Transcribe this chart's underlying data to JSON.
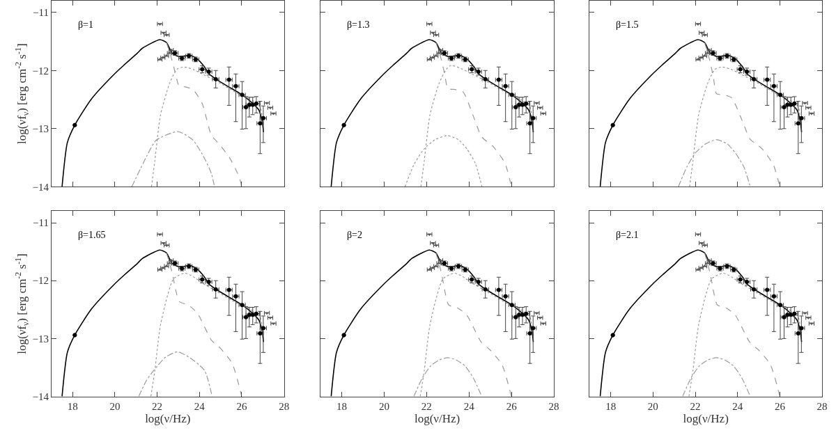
{
  "chart_data": [
    {
      "type": "line",
      "annotations": [
        "β=1"
      ],
      "ylabel": "log(νf$_{ν}$) [erg cm$^{-2}$ s$^{-1}$]",
      "xlim": [
        17,
        28
      ],
      "ylim": [
        -14,
        -10.8
      ],
      "xticks": [
        18,
        20,
        22,
        24,
        26,
        28
      ],
      "yticks": [
        -14,
        -13,
        -12,
        -11
      ],
      "tick_labels": "y",
      "series": [
        {
          "type": "line",
          "color": "#000000",
          "line_style": "solid",
          "x": [
            17.5,
            17.75,
            18.1,
            18.89,
            19.98,
            20.42,
            21.07,
            21.29,
            22.13,
            22.44,
            22.7,
            23.04,
            23.57,
            23.9,
            24.24,
            24.46,
            24.79,
            25.33,
            26.02,
            26.53,
            26.81,
            26.97,
            27.03
          ],
          "values": [
            -14,
            -13.24,
            -12.94,
            -12.49,
            -12.06,
            -11.91,
            -11.7,
            -11.62,
            -11.47,
            -11.52,
            -11.7,
            -11.76,
            -11.74,
            -11.8,
            -11.94,
            -12.06,
            -12.15,
            -12.27,
            -12.42,
            -12.57,
            -12.68,
            -12.88,
            -13.06
          ]
        },
        {
          "type": "line",
          "color": "#999999",
          "line_style": "dashed",
          "x": [
            22.44,
            22.7,
            22.87,
            23.04,
            23.31,
            23.7,
            24.13,
            24.57,
            24.9,
            25.44,
            25.88,
            26.0
          ],
          "values": [
            -11.52,
            -11.82,
            -12.06,
            -12.27,
            -12.28,
            -12.33,
            -12.57,
            -13.12,
            -13.25,
            -13.51,
            -13.83,
            -14
          ]
        },
        {
          "type": "line",
          "color": "#999999",
          "line_style": "dotted",
          "x": [
            21.73,
            21.89,
            22.16,
            22.6,
            22.93,
            23.27,
            23.7,
            24.13,
            24.79,
            25.88,
            26.53,
            26.87,
            27.0
          ],
          "values": [
            -14,
            -13.55,
            -12.76,
            -12.21,
            -11.98,
            -11.94,
            -11.98,
            -12.06,
            -12.18,
            -12.41,
            -12.52,
            -12.63,
            -12.9
          ]
        },
        {
          "type": "line",
          "color": "#999999",
          "line_style": "dashdot",
          "x": [
            20.8,
            21.51,
            21.95,
            22.98,
            23.7,
            24.24,
            24.57,
            24.71
          ],
          "values": [
            -14,
            -13.47,
            -13.2,
            -13.05,
            -13.2,
            -13.51,
            -13.78,
            -14
          ]
        },
        {
          "type": "scatter",
          "color": "#000000",
          "marker": "circle",
          "x": [
            18.1,
            22.84,
            23.17,
            23.5,
            23.82,
            24.13,
            24.44,
            24.77,
            25.4,
            25.72,
            26.02,
            26.2,
            26.36,
            26.52,
            26.69,
            26.87,
            27.02
          ],
          "values": [
            -12.94,
            -11.7,
            -11.79,
            -11.75,
            -11.81,
            -11.98,
            -12.02,
            -12.15,
            -12.16,
            -12.27,
            -12.42,
            -12.63,
            -12.59,
            -12.59,
            -12.57,
            -12.91,
            -12.82
          ],
          "errors": [
            null,
            [
              -11.74,
              -11.66
            ],
            [
              -11.83,
              -11.75
            ],
            [
              -11.79,
              -11.71
            ],
            [
              -11.85,
              -11.77
            ],
            [
              -12.04,
              -11.92
            ],
            [
              -12.08,
              -11.96
            ],
            [
              -12.3,
              -12.0
            ],
            [
              -12.6,
              -11.94
            ],
            [
              -12.88,
              -12.06
            ],
            [
              -13.01,
              -12.19
            ],
            [
              -13.0,
              -12.45
            ],
            [
              -12.8,
              -12.46
            ],
            [
              -12.76,
              -12.46
            ],
            [
              -12.73,
              -12.45
            ],
            [
              -13.43,
              -12.53
            ],
            [
              -13.24,
              -12.61
            ]
          ],
          "xerrors": [
            null,
            0.15,
            0.15,
            0.15,
            0.15,
            0.15,
            0.15,
            0.15,
            0.15,
            0.15,
            0.15,
            0.15,
            0.15,
            0.15,
            0.15,
            0.15,
            0.15
          ]
        },
        {
          "type": "scatter",
          "color": "#555555",
          "marker": "triangle-down",
          "x": [
            22.13,
            22.3,
            22.45,
            27.19,
            27.35,
            27.5
          ],
          "values": [
            -11.2,
            -11.35,
            -11.39,
            -12.56,
            -12.64,
            -12.74
          ],
          "xerrors": [
            0.12,
            0.12,
            0.12,
            0.12,
            0.12,
            0.12
          ]
        },
        {
          "type": "scatter",
          "color": "#555555",
          "marker": "triangle",
          "x": [
            22.13,
            22.27,
            22.44,
            22.58,
            22.66
          ],
          "values": [
            -11.81,
            -11.78,
            -11.75,
            -11.7,
            -11.65
          ],
          "xerrors": [
            0.1,
            0.1,
            0.1,
            0.1,
            0.1
          ]
        }
      ]
    },
    {
      "type": "line",
      "annotations": [
        "β=1.3"
      ],
      "xlim": [
        17,
        28
      ],
      "ylim": [
        -14,
        -10.8
      ],
      "xticks": [
        18,
        20,
        22,
        24,
        26,
        28
      ],
      "yticks": [
        -14,
        -13,
        -12,
        -11
      ],
      "tick_labels": false,
      "series": [
        {
          "type": "line",
          "color": "#000000",
          "line_style": "solid",
          "x": [
            17.5,
            17.75,
            18.1,
            18.89,
            19.98,
            20.42,
            21.07,
            21.29,
            22.13,
            22.44,
            22.7,
            23.04,
            23.57,
            23.9,
            24.24,
            24.46,
            24.79,
            25.33,
            26.02,
            26.53,
            26.81,
            26.97,
            27.03
          ],
          "values": [
            -14,
            -13.24,
            -12.94,
            -12.49,
            -12.06,
            -11.91,
            -11.7,
            -11.62,
            -11.47,
            -11.52,
            -11.7,
            -11.76,
            -11.74,
            -11.8,
            -11.94,
            -12.06,
            -12.15,
            -12.27,
            -12.42,
            -12.57,
            -12.68,
            -12.88,
            -13.06
          ]
        },
        {
          "type": "line",
          "color": "#999999",
          "line_style": "dashed",
          "x": [
            22.44,
            22.7,
            22.87,
            23.0,
            23.39,
            23.72,
            24.26,
            24.59,
            25.14,
            25.69,
            26.0
          ],
          "values": [
            -11.52,
            -11.82,
            -12.1,
            -12.31,
            -12.33,
            -12.37,
            -12.84,
            -13.14,
            -13.31,
            -13.59,
            -14
          ]
        },
        {
          "type": "line",
          "color": "#999999",
          "line_style": "dotted",
          "x": [
            21.73,
            21.89,
            22.16,
            22.6,
            22.93,
            23.15,
            23.7,
            24.13,
            24.79,
            25.88,
            26.53,
            26.87,
            27.0
          ],
          "values": [
            -14,
            -13.55,
            -12.76,
            -12.21,
            -11.98,
            -11.91,
            -11.98,
            -12.06,
            -12.18,
            -12.41,
            -12.52,
            -12.63,
            -12.9
          ]
        },
        {
          "type": "line",
          "color": "#999999",
          "line_style": "dotted",
          "x": [
            20.98,
            21.4,
            21.88,
            22.4,
            22.98,
            23.5,
            23.9,
            24.3,
            24.61
          ],
          "values": [
            -14,
            -13.62,
            -13.35,
            -13.19,
            -13.12,
            -13.19,
            -13.35,
            -13.6,
            -14
          ]
        },
        {
          "type": "scatter",
          "color": "#000000",
          "marker": "circle",
          "x": [
            18.1,
            22.84,
            23.17,
            23.5,
            23.82,
            24.13,
            24.44,
            24.77,
            25.4,
            25.72,
            26.02,
            26.2,
            26.36,
            26.52,
            26.69,
            26.87,
            27.02
          ],
          "values": [
            -12.94,
            -11.7,
            -11.79,
            -11.75,
            -11.81,
            -11.98,
            -12.02,
            -12.15,
            -12.16,
            -12.27,
            -12.42,
            -12.63,
            -12.59,
            -12.59,
            -12.57,
            -12.91,
            -12.82
          ],
          "errors": [
            null,
            [
              -11.74,
              -11.66
            ],
            [
              -11.83,
              -11.75
            ],
            [
              -11.79,
              -11.71
            ],
            [
              -11.85,
              -11.77
            ],
            [
              -12.04,
              -11.92
            ],
            [
              -12.08,
              -11.96
            ],
            [
              -12.3,
              -12.0
            ],
            [
              -12.6,
              -11.94
            ],
            [
              -12.88,
              -12.06
            ],
            [
              -13.01,
              -12.19
            ],
            [
              -13.0,
              -12.45
            ],
            [
              -12.8,
              -12.46
            ],
            [
              -12.76,
              -12.46
            ],
            [
              -12.73,
              -12.45
            ],
            [
              -13.43,
              -12.53
            ],
            [
              -13.24,
              -12.61
            ]
          ],
          "xerrors": [
            null,
            0.15,
            0.15,
            0.15,
            0.15,
            0.15,
            0.15,
            0.15,
            0.15,
            0.15,
            0.15,
            0.15,
            0.15,
            0.15,
            0.15,
            0.15,
            0.15
          ]
        },
        {
          "type": "scatter",
          "color": "#555555",
          "marker": "triangle-down",
          "x": [
            22.13,
            22.3,
            22.45,
            27.19,
            27.35,
            27.5
          ],
          "values": [
            -11.2,
            -11.35,
            -11.39,
            -12.56,
            -12.64,
            -12.74
          ],
          "xerrors": [
            0.12,
            0.12,
            0.12,
            0.12,
            0.12,
            0.12
          ]
        },
        {
          "type": "scatter",
          "color": "#555555",
          "marker": "triangle",
          "x": [
            22.13,
            22.27,
            22.44,
            22.58,
            22.66
          ],
          "values": [
            -11.81,
            -11.78,
            -11.75,
            -11.7,
            -11.65
          ],
          "xerrors": [
            0.1,
            0.1,
            0.1,
            0.1,
            0.1
          ]
        }
      ]
    },
    {
      "type": "line",
      "annotations": [
        "β=1.5"
      ],
      "xlim": [
        17,
        28
      ],
      "ylim": [
        -14,
        -10.8
      ],
      "xticks": [
        18,
        20,
        22,
        24,
        26,
        28
      ],
      "yticks": [
        -14,
        -13,
        -12,
        -11
      ],
      "tick_labels": false,
      "series": [
        {
          "type": "line",
          "color": "#000000",
          "line_style": "solid",
          "x": [
            17.5,
            17.75,
            18.1,
            18.89,
            19.98,
            20.42,
            21.07,
            21.29,
            22.13,
            22.44,
            22.7,
            23.04,
            23.57,
            23.9,
            24.24,
            24.46,
            24.79,
            25.33,
            26.02,
            26.53,
            26.81,
            26.97,
            27.03
          ],
          "values": [
            -14,
            -13.24,
            -12.94,
            -12.49,
            -12.06,
            -11.91,
            -11.7,
            -11.62,
            -11.47,
            -11.52,
            -11.7,
            -11.76,
            -11.74,
            -11.8,
            -11.94,
            -12.06,
            -12.15,
            -12.27,
            -12.42,
            -12.57,
            -12.68,
            -12.88,
            -13.06
          ]
        },
        {
          "type": "line",
          "color": "#999999",
          "line_style": "dashed",
          "x": [
            22.44,
            22.7,
            22.87,
            23.0,
            23.39,
            23.72,
            24.26,
            24.59,
            25.14,
            25.69,
            26.0
          ],
          "values": [
            -11.52,
            -11.85,
            -12.15,
            -12.4,
            -12.42,
            -12.47,
            -12.9,
            -13.18,
            -13.34,
            -13.62,
            -14
          ]
        },
        {
          "type": "line",
          "color": "#999999",
          "line_style": "dotted",
          "x": [
            21.73,
            21.89,
            22.16,
            22.6,
            22.93,
            23.27,
            23.7,
            24.13,
            24.79,
            25.88,
            26.53,
            26.87,
            27.0
          ],
          "values": [
            -14,
            -13.55,
            -12.76,
            -12.21,
            -11.98,
            -11.94,
            -11.98,
            -12.06,
            -12.18,
            -12.41,
            -12.52,
            -12.63,
            -12.9
          ]
        },
        {
          "type": "line",
          "color": "#999999",
          "line_style": "dashdot",
          "x": [
            21.2,
            21.6,
            22.0,
            22.5,
            23.0,
            23.5,
            23.9,
            24.3,
            24.6
          ],
          "values": [
            -14,
            -13.66,
            -13.42,
            -13.26,
            -13.19,
            -13.26,
            -13.42,
            -13.66,
            -14
          ]
        },
        {
          "type": "scatter",
          "color": "#000000",
          "marker": "circle",
          "x": [
            18.1,
            22.84,
            23.17,
            23.5,
            23.82,
            24.13,
            24.44,
            24.77,
            25.4,
            25.72,
            26.02,
            26.2,
            26.36,
            26.52,
            26.69,
            26.87,
            27.02
          ],
          "values": [
            -12.94,
            -11.7,
            -11.79,
            -11.75,
            -11.81,
            -11.98,
            -12.02,
            -12.15,
            -12.16,
            -12.27,
            -12.42,
            -12.63,
            -12.59,
            -12.59,
            -12.57,
            -12.91,
            -12.82
          ],
          "errors": [
            null,
            [
              -11.74,
              -11.66
            ],
            [
              -11.83,
              -11.75
            ],
            [
              -11.79,
              -11.71
            ],
            [
              -11.85,
              -11.77
            ],
            [
              -12.04,
              -11.92
            ],
            [
              -12.08,
              -11.96
            ],
            [
              -12.3,
              -12.0
            ],
            [
              -12.6,
              -11.94
            ],
            [
              -12.88,
              -12.06
            ],
            [
              -13.01,
              -12.19
            ],
            [
              -13.0,
              -12.45
            ],
            [
              -12.8,
              -12.46
            ],
            [
              -12.76,
              -12.46
            ],
            [
              -12.73,
              -12.45
            ],
            [
              -13.43,
              -12.53
            ],
            [
              -13.24,
              -12.61
            ]
          ],
          "xerrors": [
            null,
            0.15,
            0.15,
            0.15,
            0.15,
            0.15,
            0.15,
            0.15,
            0.15,
            0.15,
            0.15,
            0.15,
            0.15,
            0.15,
            0.15,
            0.15,
            0.15
          ]
        },
        {
          "type": "scatter",
          "color": "#555555",
          "marker": "triangle-down",
          "x": [
            22.13,
            22.3,
            22.45,
            27.19,
            27.35,
            27.5
          ],
          "values": [
            -11.2,
            -11.35,
            -11.39,
            -12.56,
            -12.64,
            -12.74
          ],
          "xerrors": [
            0.12,
            0.12,
            0.12,
            0.12,
            0.12,
            0.12
          ]
        },
        {
          "type": "scatter",
          "color": "#555555",
          "marker": "triangle",
          "x": [
            22.13,
            22.27,
            22.44,
            22.58,
            22.66
          ],
          "values": [
            -11.81,
            -11.78,
            -11.75,
            -11.7,
            -11.65
          ],
          "xerrors": [
            0.1,
            0.1,
            0.1,
            0.1,
            0.1
          ]
        }
      ]
    },
    {
      "type": "line",
      "annotations": [
        "β=1.65"
      ],
      "xlabel": "log(ν/Hz)",
      "ylabel": "log(νf$_{ν}$) [erg cm$^{-2}$ s$^{-1}$]",
      "xlim": [
        17,
        28
      ],
      "ylim": [
        -14,
        -10.8
      ],
      "xticks": [
        18,
        20,
        22,
        24,
        26,
        28
      ],
      "yticks": [
        -14,
        -13,
        -12,
        -11
      ],
      "series": [
        {
          "type": "line",
          "color": "#000000",
          "line_style": "solid",
          "x": [
            17.5,
            17.75,
            18.1,
            18.89,
            19.98,
            20.42,
            21.07,
            21.29,
            22.13,
            22.44,
            22.7,
            23.04,
            23.57,
            23.9,
            24.24,
            24.46,
            24.79,
            25.33,
            26.02,
            26.53,
            26.81,
            26.97,
            27.03
          ],
          "values": [
            -14,
            -13.24,
            -12.94,
            -12.49,
            -12.06,
            -11.91,
            -11.7,
            -11.62,
            -11.47,
            -11.52,
            -11.7,
            -11.76,
            -11.74,
            -11.8,
            -11.94,
            -12.06,
            -12.15,
            -12.27,
            -12.42,
            -12.57,
            -12.68,
            -12.88,
            -13.06
          ]
        },
        {
          "type": "line",
          "color": "#999999",
          "line_style": "dashed",
          "x": [
            22.44,
            22.7,
            22.87,
            23.04,
            23.5,
            23.9,
            24.57,
            25.0,
            25.55,
            26.0
          ],
          "values": [
            -11.52,
            -11.85,
            -12.15,
            -12.36,
            -12.43,
            -12.56,
            -13.03,
            -13.17,
            -13.43,
            -14
          ]
        },
        {
          "type": "line",
          "color": "#999999",
          "line_style": "dotted",
          "x": [
            21.7,
            21.89,
            22.16,
            22.77,
            23.3,
            23.7,
            24.13,
            24.79,
            25.88,
            26.53,
            26.87,
            27.0
          ],
          "values": [
            -14,
            -13.55,
            -12.76,
            -11.97,
            -11.87,
            -11.93,
            -12.04,
            -12.18,
            -12.41,
            -12.52,
            -12.63,
            -12.9
          ]
        },
        {
          "type": "line",
          "color": "#999999",
          "line_style": "dashdot",
          "x": [
            21.13,
            21.5,
            21.84,
            22.4,
            22.96,
            23.5,
            24.24,
            24.6
          ],
          "values": [
            -14,
            -13.72,
            -13.55,
            -13.32,
            -13.23,
            -13.32,
            -13.55,
            -14
          ]
        },
        {
          "type": "scatter",
          "color": "#000000",
          "marker": "circle",
          "x": [
            18.1,
            22.84,
            23.17,
            23.5,
            23.82,
            24.13,
            24.44,
            24.77,
            25.4,
            25.72,
            26.02,
            26.2,
            26.36,
            26.52,
            26.69,
            26.87,
            27.02
          ],
          "values": [
            -12.94,
            -11.7,
            -11.79,
            -11.75,
            -11.81,
            -11.98,
            -12.02,
            -12.15,
            -12.16,
            -12.27,
            -12.42,
            -12.63,
            -12.59,
            -12.59,
            -12.57,
            -12.91,
            -12.82
          ],
          "errors": [
            null,
            [
              -11.74,
              -11.66
            ],
            [
              -11.83,
              -11.75
            ],
            [
              -11.79,
              -11.71
            ],
            [
              -11.85,
              -11.77
            ],
            [
              -12.04,
              -11.92
            ],
            [
              -12.08,
              -11.96
            ],
            [
              -12.3,
              -12.0
            ],
            [
              -12.6,
              -11.94
            ],
            [
              -12.88,
              -12.06
            ],
            [
              -13.01,
              -12.19
            ],
            [
              -13.0,
              -12.45
            ],
            [
              -12.8,
              -12.46
            ],
            [
              -12.76,
              -12.46
            ],
            [
              -12.73,
              -12.45
            ],
            [
              -13.43,
              -12.53
            ],
            [
              -13.24,
              -12.61
            ]
          ],
          "xerrors": [
            null,
            0.15,
            0.15,
            0.15,
            0.15,
            0.15,
            0.15,
            0.15,
            0.15,
            0.15,
            0.15,
            0.15,
            0.15,
            0.15,
            0.15,
            0.15,
            0.15
          ]
        },
        {
          "type": "scatter",
          "color": "#555555",
          "marker": "triangle-down",
          "x": [
            22.13,
            22.3,
            22.45,
            27.19,
            27.35,
            27.5
          ],
          "values": [
            -11.2,
            -11.35,
            -11.39,
            -12.56,
            -12.64,
            -12.74
          ],
          "xerrors": [
            0.12,
            0.12,
            0.12,
            0.12,
            0.12,
            0.12
          ]
        },
        {
          "type": "scatter",
          "color": "#555555",
          "marker": "triangle",
          "x": [
            22.13,
            22.27,
            22.44,
            22.58,
            22.66
          ],
          "values": [
            -11.81,
            -11.78,
            -11.75,
            -11.7,
            -11.65
          ],
          "xerrors": [
            0.1,
            0.1,
            0.1,
            0.1,
            0.1
          ]
        }
      ]
    },
    {
      "type": "line",
      "annotations": [
        "β=2"
      ],
      "xlabel": "log(ν/Hz)",
      "xlim": [
        17,
        28
      ],
      "ylim": [
        -14,
        -10.8
      ],
      "xticks": [
        18,
        20,
        22,
        24,
        26,
        28
      ],
      "yticks": [
        -14,
        -13,
        -12,
        -11
      ],
      "tick_labels": "x",
      "series": [
        {
          "type": "line",
          "color": "#000000",
          "line_style": "solid",
          "x": [
            17.5,
            17.75,
            18.1,
            18.89,
            19.98,
            20.42,
            21.07,
            21.29,
            22.13,
            22.44,
            22.7,
            23.04,
            23.57,
            23.9,
            24.24,
            24.46,
            24.79,
            25.33,
            26.02,
            26.53,
            26.81,
            26.97,
            27.03
          ],
          "values": [
            -14,
            -13.24,
            -12.94,
            -12.49,
            -12.06,
            -11.91,
            -11.7,
            -11.62,
            -11.47,
            -11.52,
            -11.7,
            -11.76,
            -11.74,
            -11.8,
            -11.94,
            -12.06,
            -12.15,
            -12.27,
            -12.42,
            -12.57,
            -12.68,
            -12.88,
            -13.06
          ]
        },
        {
          "type": "line",
          "color": "#999999",
          "line_style": "dashed",
          "x": [
            22.44,
            22.7,
            22.87,
            23.04,
            23.5,
            23.9,
            24.57,
            25.0,
            25.55,
            26.0
          ],
          "values": [
            -11.52,
            -11.87,
            -12.2,
            -12.42,
            -12.48,
            -12.6,
            -13.06,
            -13.2,
            -13.45,
            -14
          ]
        },
        {
          "type": "line",
          "color": "#999999",
          "line_style": "dotted",
          "x": [
            21.7,
            21.89,
            22.16,
            22.77,
            23.3,
            23.7,
            24.13,
            24.79,
            25.88,
            26.53,
            26.87,
            27.0
          ],
          "values": [
            -14,
            -13.55,
            -12.76,
            -11.97,
            -11.87,
            -11.93,
            -12.04,
            -12.18,
            -12.41,
            -12.52,
            -12.63,
            -12.9
          ]
        },
        {
          "type": "line",
          "color": "#999999",
          "line_style": "dashdot",
          "x": [
            21.4,
            21.8,
            22.2,
            22.6,
            23.0,
            23.4,
            23.8,
            24.2,
            24.6
          ],
          "values": [
            -14,
            -13.68,
            -13.47,
            -13.37,
            -13.33,
            -13.37,
            -13.47,
            -13.68,
            -14
          ]
        },
        {
          "type": "scatter",
          "color": "#000000",
          "marker": "circle",
          "x": [
            18.1,
            22.84,
            23.17,
            23.5,
            23.82,
            24.13,
            24.44,
            24.77,
            25.4,
            25.72,
            26.02,
            26.2,
            26.36,
            26.52,
            26.69,
            26.87,
            27.02
          ],
          "values": [
            -12.94,
            -11.7,
            -11.79,
            -11.75,
            -11.81,
            -11.98,
            -12.02,
            -12.15,
            -12.16,
            -12.27,
            -12.42,
            -12.63,
            -12.59,
            -12.59,
            -12.57,
            -12.91,
            -12.82
          ],
          "errors": [
            null,
            [
              -11.74,
              -11.66
            ],
            [
              -11.83,
              -11.75
            ],
            [
              -11.79,
              -11.71
            ],
            [
              -11.85,
              -11.77
            ],
            [
              -12.04,
              -11.92
            ],
            [
              -12.08,
              -11.96
            ],
            [
              -12.3,
              -12.0
            ],
            [
              -12.6,
              -11.94
            ],
            [
              -12.88,
              -12.06
            ],
            [
              -13.01,
              -12.19
            ],
            [
              -13.0,
              -12.45
            ],
            [
              -12.8,
              -12.46
            ],
            [
              -12.76,
              -12.46
            ],
            [
              -12.73,
              -12.45
            ],
            [
              -13.43,
              -12.53
            ],
            [
              -13.24,
              -12.61
            ]
          ],
          "xerrors": [
            null,
            0.15,
            0.15,
            0.15,
            0.15,
            0.15,
            0.15,
            0.15,
            0.15,
            0.15,
            0.15,
            0.15,
            0.15,
            0.15,
            0.15,
            0.15,
            0.15
          ]
        },
        {
          "type": "scatter",
          "color": "#555555",
          "marker": "triangle-down",
          "x": [
            22.13,
            22.3,
            22.45,
            27.19,
            27.35,
            27.5
          ],
          "values": [
            -11.2,
            -11.35,
            -11.39,
            -12.56,
            -12.64,
            -12.74
          ],
          "xerrors": [
            0.12,
            0.12,
            0.12,
            0.12,
            0.12,
            0.12
          ]
        },
        {
          "type": "scatter",
          "color": "#555555",
          "marker": "triangle",
          "x": [
            22.13,
            22.27,
            22.44,
            22.58,
            22.66
          ],
          "values": [
            -11.81,
            -11.78,
            -11.75,
            -11.7,
            -11.65
          ],
          "xerrors": [
            0.1,
            0.1,
            0.1,
            0.1,
            0.1
          ]
        }
      ]
    },
    {
      "type": "line",
      "annotations": [
        "β=2.1"
      ],
      "xlabel": "log(ν/Hz)",
      "xlim": [
        17,
        28
      ],
      "ylim": [
        -14,
        -10.8
      ],
      "xticks": [
        18,
        20,
        22,
        24,
        26,
        28
      ],
      "yticks": [
        -14,
        -13,
        -12,
        -11
      ],
      "tick_labels": "x",
      "series": [
        {
          "type": "line",
          "color": "#000000",
          "line_style": "solid",
          "x": [
            17.5,
            17.75,
            18.1,
            18.89,
            19.98,
            20.42,
            21.07,
            21.29,
            22.13,
            22.44,
            22.7,
            23.04,
            23.57,
            23.9,
            24.24,
            24.46,
            24.79,
            25.33,
            26.02,
            26.53,
            26.81,
            26.97,
            27.03
          ],
          "values": [
            -14,
            -13.24,
            -12.94,
            -12.49,
            -12.06,
            -11.91,
            -11.7,
            -11.62,
            -11.47,
            -11.52,
            -11.7,
            -11.76,
            -11.74,
            -11.8,
            -11.94,
            -12.06,
            -12.15,
            -12.27,
            -12.42,
            -12.57,
            -12.68,
            -12.88,
            -13.06
          ]
        },
        {
          "type": "line",
          "color": "#999999",
          "line_style": "dashed",
          "x": [
            22.44,
            22.7,
            22.87,
            23.04,
            23.5,
            23.9,
            24.57,
            25.0,
            25.55,
            26.0
          ],
          "values": [
            -11.52,
            -11.87,
            -12.2,
            -12.42,
            -12.48,
            -12.6,
            -13.06,
            -13.2,
            -13.45,
            -14
          ]
        },
        {
          "type": "line",
          "color": "#999999",
          "line_style": "dotted",
          "x": [
            21.7,
            21.89,
            22.16,
            22.77,
            23.3,
            23.7,
            24.13,
            24.79,
            25.88,
            26.53,
            26.87,
            27.0
          ],
          "values": [
            -14,
            -13.55,
            -12.76,
            -11.97,
            -11.87,
            -11.93,
            -12.04,
            -12.18,
            -12.41,
            -12.52,
            -12.63,
            -12.9
          ]
        },
        {
          "type": "line",
          "color": "#999999",
          "line_style": "dashdot",
          "x": [
            21.4,
            21.8,
            22.2,
            22.6,
            23.0,
            23.4,
            23.8,
            24.2,
            24.6
          ],
          "values": [
            -14,
            -13.68,
            -13.47,
            -13.37,
            -13.33,
            -13.37,
            -13.47,
            -13.68,
            -14
          ]
        },
        {
          "type": "scatter",
          "color": "#000000",
          "marker": "circle",
          "x": [
            18.1,
            22.84,
            23.17,
            23.5,
            23.82,
            24.13,
            24.44,
            24.77,
            25.4,
            25.72,
            26.02,
            26.2,
            26.36,
            26.52,
            26.69,
            26.87,
            27.02
          ],
          "values": [
            -12.94,
            -11.7,
            -11.79,
            -11.75,
            -11.81,
            -11.98,
            -12.02,
            -12.15,
            -12.16,
            -12.27,
            -12.42,
            -12.63,
            -12.59,
            -12.59,
            -12.57,
            -12.91,
            -12.82
          ],
          "errors": [
            null,
            [
              -11.74,
              -11.66
            ],
            [
              -11.83,
              -11.75
            ],
            [
              -11.79,
              -11.71
            ],
            [
              -11.85,
              -11.77
            ],
            [
              -12.04,
              -11.92
            ],
            [
              -12.08,
              -11.96
            ],
            [
              -12.3,
              -12.0
            ],
            [
              -12.6,
              -11.94
            ],
            [
              -12.88,
              -12.06
            ],
            [
              -13.01,
              -12.19
            ],
            [
              -13.0,
              -12.45
            ],
            [
              -12.8,
              -12.46
            ],
            [
              -12.76,
              -12.46
            ],
            [
              -12.73,
              -12.45
            ],
            [
              -13.43,
              -12.53
            ],
            [
              -13.24,
              -12.61
            ]
          ],
          "xerrors": [
            null,
            0.15,
            0.15,
            0.15,
            0.15,
            0.15,
            0.15,
            0.15,
            0.15,
            0.15,
            0.15,
            0.15,
            0.15,
            0.15,
            0.15,
            0.15,
            0.15
          ]
        },
        {
          "type": "scatter",
          "color": "#555555",
          "marker": "triangle-down",
          "x": [
            22.13,
            22.3,
            22.45,
            27.19,
            27.35,
            27.5
          ],
          "values": [
            -11.2,
            -11.35,
            -11.39,
            -12.56,
            -12.64,
            -12.74
          ],
          "xerrors": [
            0.12,
            0.12,
            0.12,
            0.12,
            0.12,
            0.12
          ]
        },
        {
          "type": "scatter",
          "color": "#555555",
          "marker": "triangle",
          "x": [
            22.13,
            22.27,
            22.44,
            22.58,
            22.66
          ],
          "values": [
            -11.81,
            -11.78,
            -11.75,
            -11.7,
            -11.65
          ],
          "xerrors": [
            0.1,
            0.1,
            0.1,
            0.1,
            0.1
          ]
        }
      ]
    }
  ]
}
